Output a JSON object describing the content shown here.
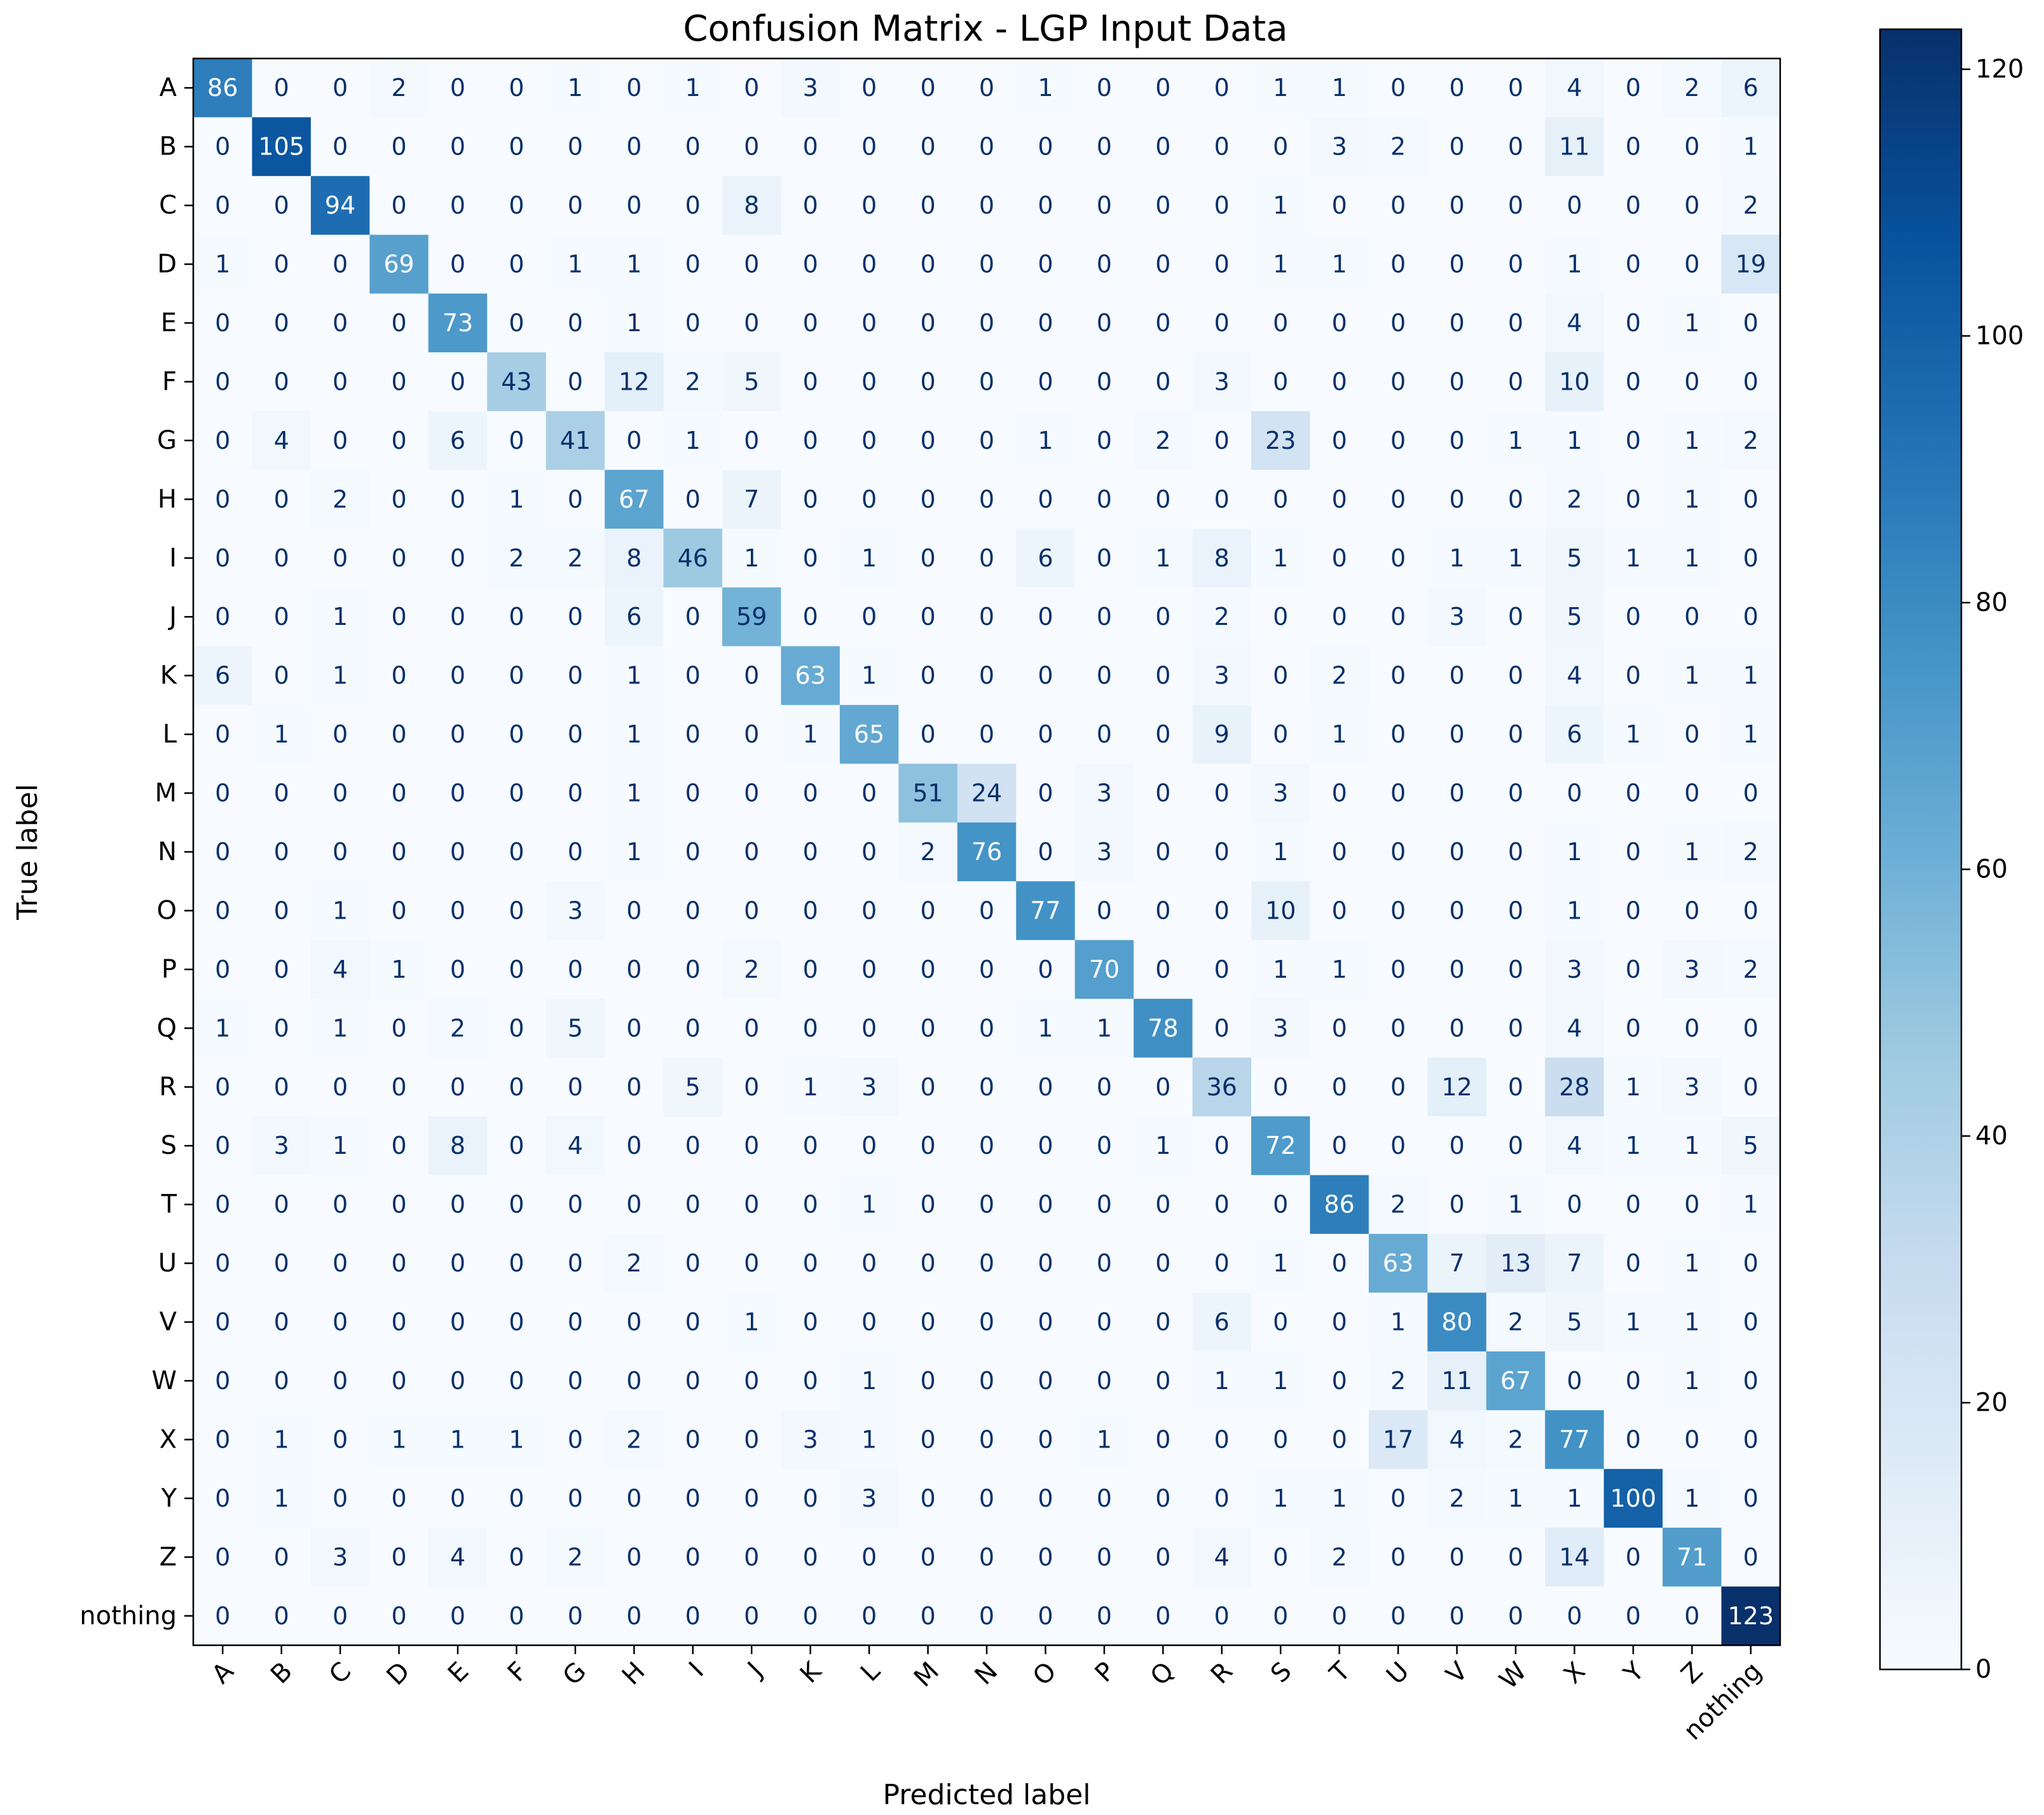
{
  "chart_data": {
    "type": "heatmap",
    "title": "Confusion Matrix - LGP Input Data",
    "xlabel": "Predicted label",
    "ylabel": "True label",
    "colormap": "Blues",
    "colors": {
      "low": "#f7fbff",
      "high": "#08306b",
      "text_dark": "#08306b",
      "text_light": "#ffffff"
    },
    "labels": [
      "A",
      "B",
      "C",
      "D",
      "E",
      "F",
      "G",
      "H",
      "I",
      "J",
      "K",
      "L",
      "M",
      "N",
      "O",
      "P",
      "Q",
      "R",
      "S",
      "T",
      "U",
      "V",
      "W",
      "X",
      "Y",
      "Z",
      "nothing"
    ],
    "matrix": [
      [
        86,
        0,
        0,
        2,
        0,
        0,
        1,
        0,
        1,
        0,
        3,
        0,
        0,
        0,
        1,
        0,
        0,
        0,
        1,
        1,
        0,
        0,
        0,
        4,
        0,
        2,
        6
      ],
      [
        0,
        105,
        0,
        0,
        0,
        0,
        0,
        0,
        0,
        0,
        0,
        0,
        0,
        0,
        0,
        0,
        0,
        0,
        0,
        3,
        2,
        0,
        0,
        11,
        0,
        0,
        1
      ],
      [
        0,
        0,
        94,
        0,
        0,
        0,
        0,
        0,
        0,
        8,
        0,
        0,
        0,
        0,
        0,
        0,
        0,
        0,
        1,
        0,
        0,
        0,
        0,
        0,
        0,
        0,
        2
      ],
      [
        1,
        0,
        0,
        69,
        0,
        0,
        1,
        1,
        0,
        0,
        0,
        0,
        0,
        0,
        0,
        0,
        0,
        0,
        1,
        1,
        0,
        0,
        0,
        1,
        0,
        0,
        19
      ],
      [
        0,
        0,
        0,
        0,
        73,
        0,
        0,
        1,
        0,
        0,
        0,
        0,
        0,
        0,
        0,
        0,
        0,
        0,
        0,
        0,
        0,
        0,
        0,
        4,
        0,
        1,
        0
      ],
      [
        0,
        0,
        0,
        0,
        0,
        43,
        0,
        12,
        2,
        5,
        0,
        0,
        0,
        0,
        0,
        0,
        0,
        3,
        0,
        0,
        0,
        0,
        0,
        10,
        0,
        0,
        0
      ],
      [
        0,
        4,
        0,
        0,
        6,
        0,
        41,
        0,
        1,
        0,
        0,
        0,
        0,
        0,
        1,
        0,
        2,
        0,
        23,
        0,
        0,
        0,
        1,
        1,
        0,
        1,
        2
      ],
      [
        0,
        0,
        2,
        0,
        0,
        1,
        0,
        67,
        0,
        7,
        0,
        0,
        0,
        0,
        0,
        0,
        0,
        0,
        0,
        0,
        0,
        0,
        0,
        2,
        0,
        1,
        0
      ],
      [
        0,
        0,
        0,
        0,
        0,
        2,
        2,
        8,
        46,
        1,
        0,
        1,
        0,
        0,
        6,
        0,
        1,
        8,
        1,
        0,
        0,
        1,
        1,
        5,
        1,
        1,
        0
      ],
      [
        0,
        0,
        1,
        0,
        0,
        0,
        0,
        6,
        0,
        59,
        0,
        0,
        0,
        0,
        0,
        0,
        0,
        2,
        0,
        0,
        0,
        3,
        0,
        5,
        0,
        0,
        0
      ],
      [
        6,
        0,
        1,
        0,
        0,
        0,
        0,
        1,
        0,
        0,
        63,
        1,
        0,
        0,
        0,
        0,
        0,
        3,
        0,
        2,
        0,
        0,
        0,
        4,
        0,
        1,
        1
      ],
      [
        0,
        1,
        0,
        0,
        0,
        0,
        0,
        1,
        0,
        0,
        1,
        65,
        0,
        0,
        0,
        0,
        0,
        9,
        0,
        1,
        0,
        0,
        0,
        6,
        1,
        0,
        1
      ],
      [
        0,
        0,
        0,
        0,
        0,
        0,
        0,
        1,
        0,
        0,
        0,
        0,
        51,
        24,
        0,
        3,
        0,
        0,
        3,
        0,
        0,
        0,
        0,
        0,
        0,
        0,
        0
      ],
      [
        0,
        0,
        0,
        0,
        0,
        0,
        0,
        1,
        0,
        0,
        0,
        0,
        2,
        76,
        0,
        3,
        0,
        0,
        1,
        0,
        0,
        0,
        0,
        1,
        0,
        1,
        2
      ],
      [
        0,
        0,
        1,
        0,
        0,
        0,
        3,
        0,
        0,
        0,
        0,
        0,
        0,
        0,
        77,
        0,
        0,
        0,
        10,
        0,
        0,
        0,
        0,
        1,
        0,
        0,
        0
      ],
      [
        0,
        0,
        4,
        1,
        0,
        0,
        0,
        0,
        0,
        2,
        0,
        0,
        0,
        0,
        0,
        70,
        0,
        0,
        1,
        1,
        0,
        0,
        0,
        3,
        0,
        3,
        2
      ],
      [
        1,
        0,
        1,
        0,
        2,
        0,
        5,
        0,
        0,
        0,
        0,
        0,
        0,
        0,
        1,
        1,
        78,
        0,
        3,
        0,
        0,
        0,
        0,
        4,
        0,
        0,
        0
      ],
      [
        0,
        0,
        0,
        0,
        0,
        0,
        0,
        0,
        5,
        0,
        1,
        3,
        0,
        0,
        0,
        0,
        0,
        36,
        0,
        0,
        0,
        12,
        0,
        28,
        1,
        3,
        0
      ],
      [
        0,
        3,
        1,
        0,
        8,
        0,
        4,
        0,
        0,
        0,
        0,
        0,
        0,
        0,
        0,
        0,
        1,
        0,
        72,
        0,
        0,
        0,
        0,
        4,
        1,
        1,
        5
      ],
      [
        0,
        0,
        0,
        0,
        0,
        0,
        0,
        0,
        0,
        0,
        0,
        1,
        0,
        0,
        0,
        0,
        0,
        0,
        0,
        86,
        2,
        0,
        1,
        0,
        0,
        0,
        1
      ],
      [
        0,
        0,
        0,
        0,
        0,
        0,
        0,
        2,
        0,
        0,
        0,
        0,
        0,
        0,
        0,
        0,
        0,
        0,
        1,
        0,
        63,
        7,
        13,
        7,
        0,
        1,
        0
      ],
      [
        0,
        0,
        0,
        0,
        0,
        0,
        0,
        0,
        0,
        1,
        0,
        0,
        0,
        0,
        0,
        0,
        0,
        6,
        0,
        0,
        1,
        80,
        2,
        5,
        1,
        1,
        0
      ],
      [
        0,
        0,
        0,
        0,
        0,
        0,
        0,
        0,
        0,
        0,
        0,
        1,
        0,
        0,
        0,
        0,
        0,
        1,
        1,
        0,
        2,
        11,
        67,
        0,
        0,
        1,
        0
      ],
      [
        0,
        1,
        0,
        1,
        1,
        1,
        0,
        2,
        0,
        0,
        3,
        1,
        0,
        0,
        0,
        1,
        0,
        0,
        0,
        0,
        17,
        4,
        2,
        77,
        0,
        0,
        0
      ],
      [
        0,
        1,
        0,
        0,
        0,
        0,
        0,
        0,
        0,
        0,
        0,
        3,
        0,
        0,
        0,
        0,
        0,
        0,
        1,
        1,
        0,
        2,
        1,
        1,
        100,
        1,
        0
      ],
      [
        0,
        0,
        3,
        0,
        4,
        0,
        2,
        0,
        0,
        0,
        0,
        0,
        0,
        0,
        0,
        0,
        0,
        4,
        0,
        2,
        0,
        0,
        0,
        14,
        0,
        71,
        0
      ],
      [
        0,
        0,
        0,
        0,
        0,
        0,
        0,
        0,
        0,
        0,
        0,
        0,
        0,
        0,
        0,
        0,
        0,
        0,
        0,
        0,
        0,
        0,
        0,
        0,
        0,
        0,
        123
      ]
    ],
    "vmin": 0,
    "vmax": 123,
    "colorbar_ticks": [
      "0",
      "20",
      "40",
      "60",
      "80",
      "100",
      "120"
    ],
    "grid": false
  }
}
